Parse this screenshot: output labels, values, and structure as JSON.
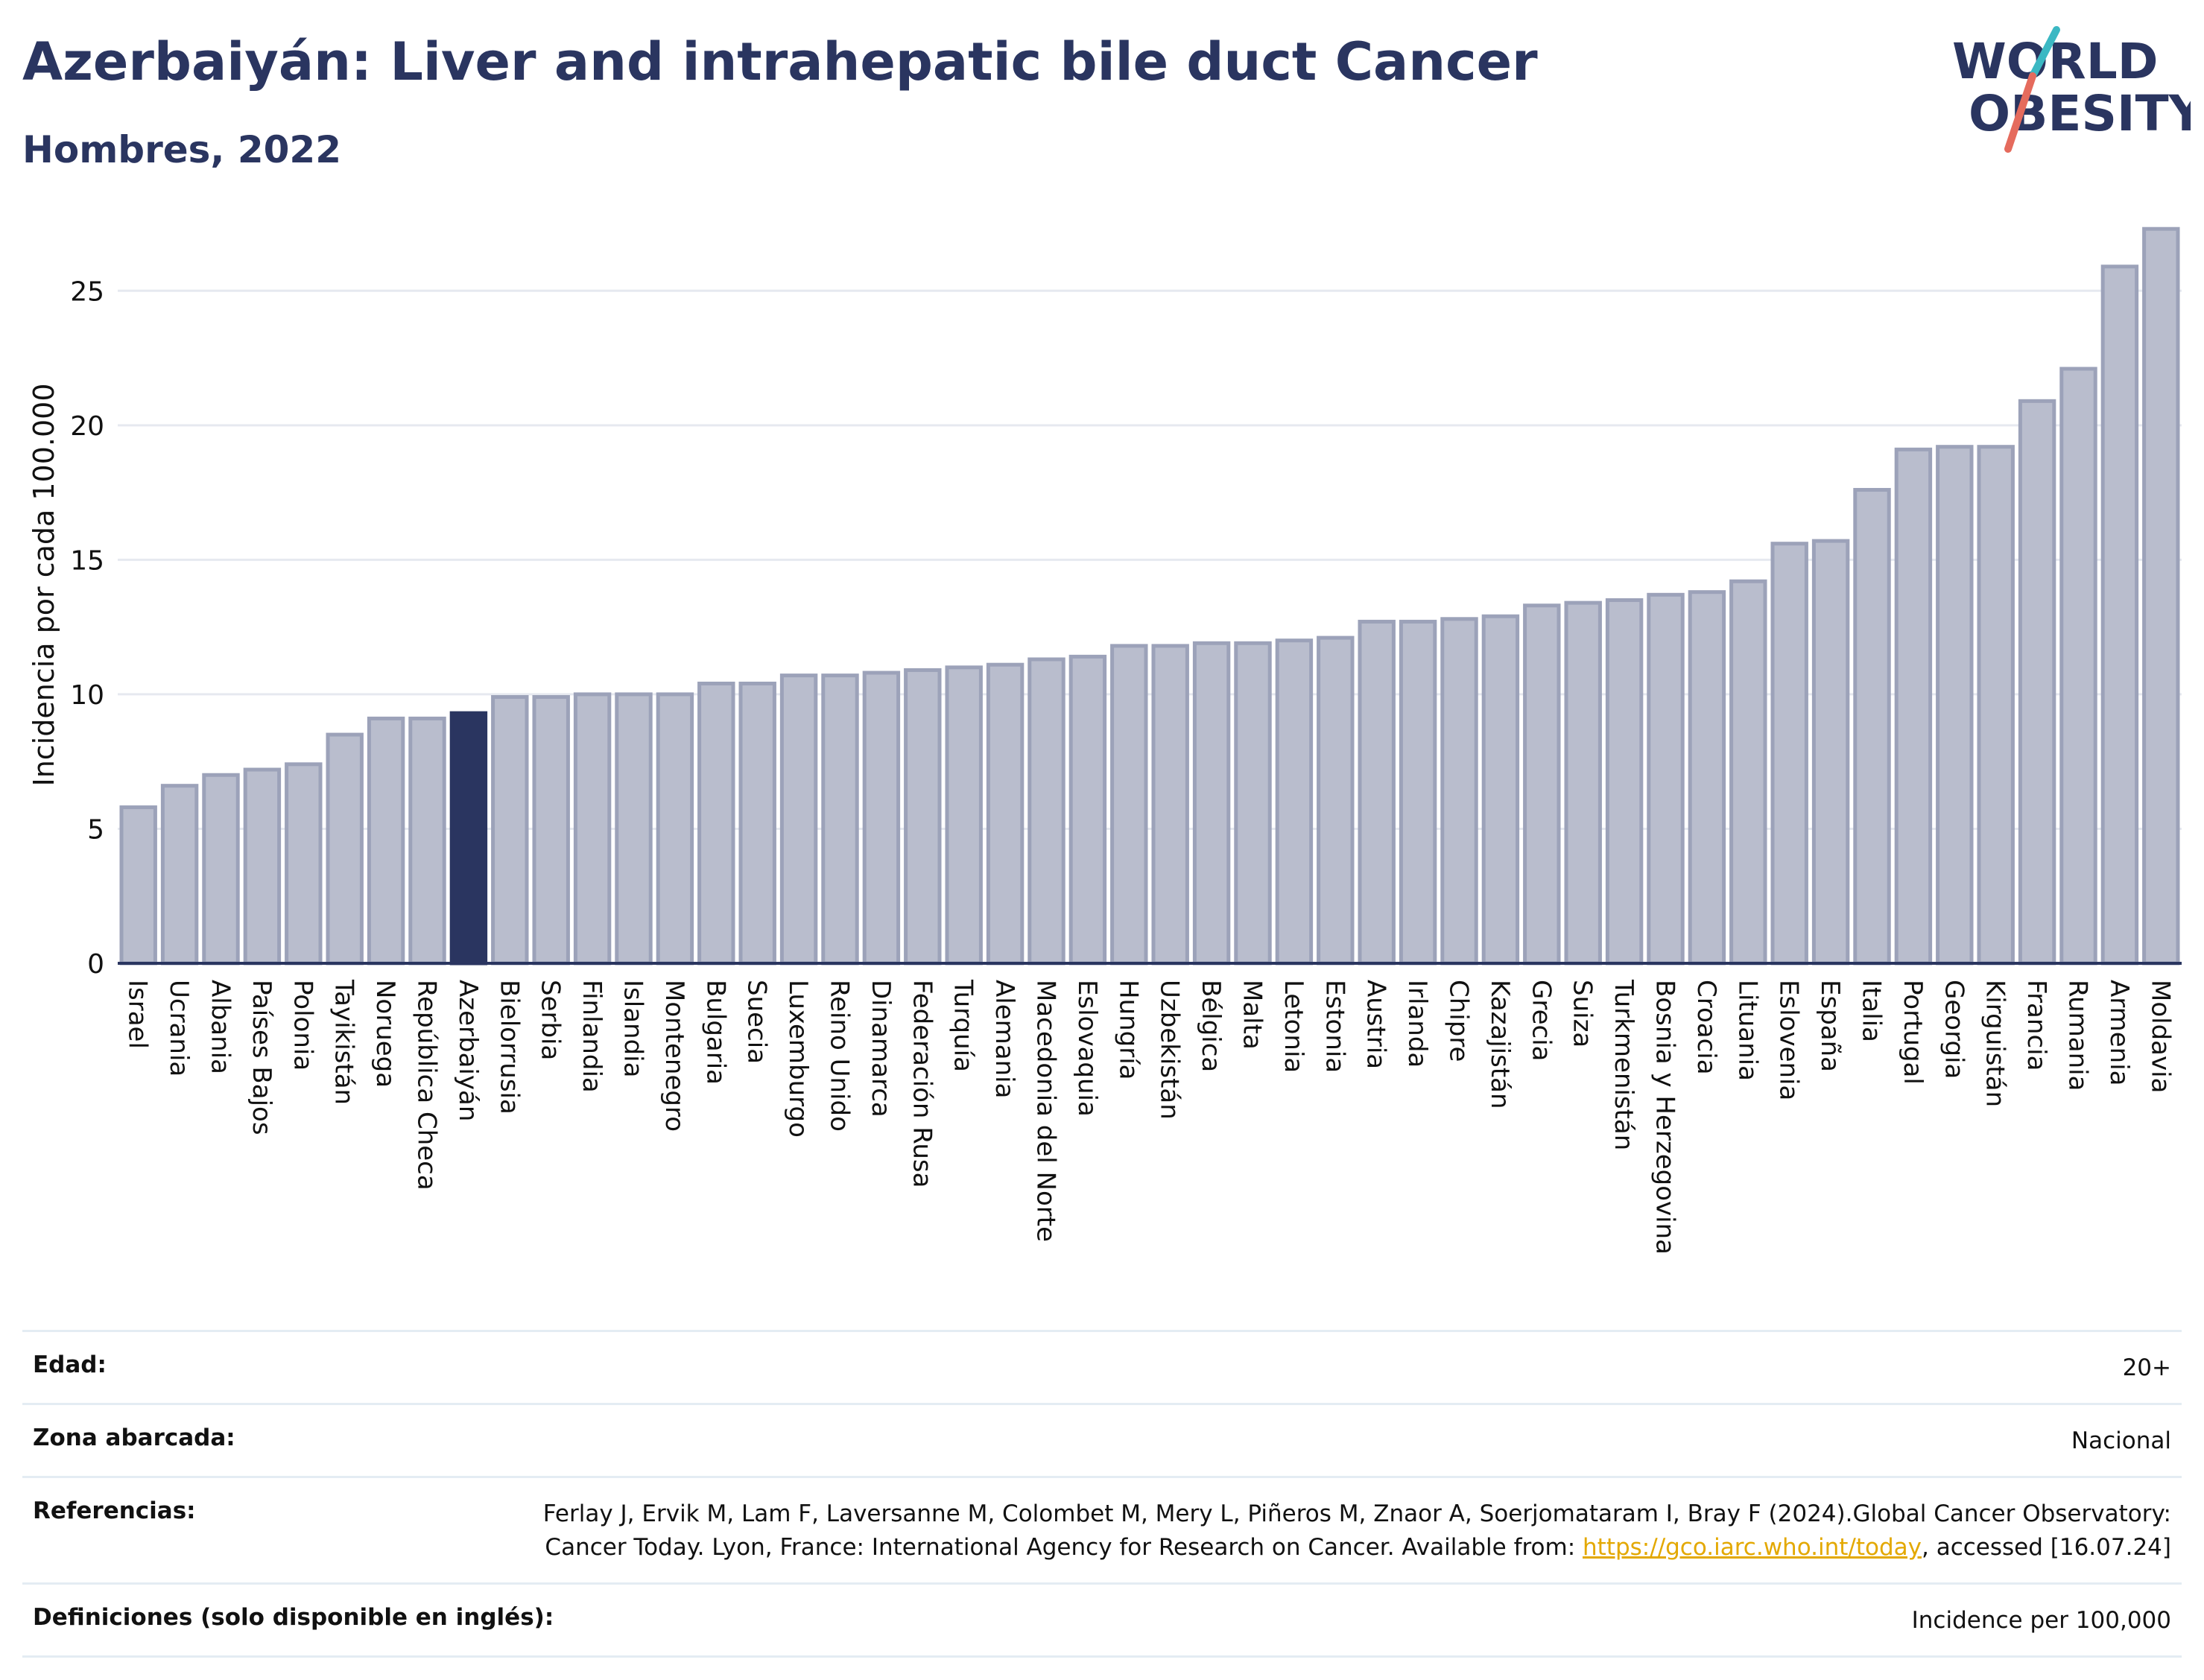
{
  "header": {
    "title": "Azerbaiyán: Liver and intrahepatic bile duct Cancer",
    "subtitle": "Hombres, 2022",
    "logo_line1": "WORLD",
    "logo_line2": "OBESITY"
  },
  "colors": {
    "bar": "#b9bdcd",
    "bar_border": "#9ca2b9",
    "highlight": "#2a3560",
    "text": "#2a3560",
    "grid": "#e6e9f0",
    "logo_teal": "#3bb8c3",
    "logo_coral": "#e56b5d"
  },
  "chart_data": {
    "type": "bar",
    "ylabel": "Incidencia por cada 100.000",
    "ylim": [
      0,
      27.5
    ],
    "yticks": [
      0,
      5,
      10,
      15,
      20,
      25
    ],
    "highlight": "Azerbaiyán",
    "grid": true,
    "categories": [
      "Israel",
      "Ucrania",
      "Albania",
      "Países Bajos",
      "Polonia",
      "Tayikistán",
      "Noruega",
      "República Checa",
      "Azerbaiyán",
      "Bielorrusia",
      "Serbia",
      "Finlandia",
      "Islandia",
      "Montenegro",
      "Bulgaria",
      "Suecia",
      "Luxemburgo",
      "Reino Unido",
      "Dinamarca",
      "Federación Rusa",
      "Turquía",
      "Alemania",
      "Macedonia del Norte",
      "Eslovaquia",
      "Hungría",
      "Uzbekistán",
      "Bélgica",
      "Malta",
      "Letonia",
      "Estonia",
      "Austria",
      "Irlanda",
      "Chipre",
      "Kazajistán",
      "Grecia",
      "Suiza",
      "Turkmenistán",
      "Bosnia y Herzegovina",
      "Croacia",
      "Lituania",
      "Eslovenia",
      "España",
      "Italia",
      "Portugal",
      "Georgia",
      "Kirguistán",
      "Francia",
      "Rumania",
      "Armenia",
      "Moldavia"
    ],
    "values": [
      5.8,
      6.6,
      7.0,
      7.2,
      7.4,
      8.5,
      9.1,
      9.1,
      9.3,
      9.9,
      9.9,
      10.0,
      10.0,
      10.0,
      10.4,
      10.4,
      10.7,
      10.7,
      10.8,
      10.9,
      11.0,
      11.1,
      11.3,
      11.4,
      11.8,
      11.8,
      11.9,
      11.9,
      12.0,
      12.1,
      12.7,
      12.7,
      12.8,
      12.9,
      13.3,
      13.4,
      13.5,
      13.7,
      13.8,
      14.2,
      15.6,
      15.7,
      17.6,
      19.1,
      19.2,
      19.2,
      20.9,
      22.1,
      25.9,
      27.3
    ]
  },
  "meta": {
    "age_label": "Edad:",
    "age_value": "20+",
    "zone_label": "Zona abarcada:",
    "zone_value": "Nacional",
    "refs_label": "Referencias:",
    "refs_text_1": "Ferlay J, Ervik M, Lam F, Laversanne M, Colombet M, Mery L, Piñeros M, Znaor A, Soerjomataram I, Bray F (2024).Global Cancer Observatory: Cancer Today. Lyon, France: International Agency for Research on Cancer. Available from: ",
    "refs_link": "https://gco.iarc.who.int/today",
    "refs_text_2": ", accessed [16.07.24]",
    "defs_label": "Definiciones (solo disponible en inglés):",
    "defs_value": "Incidence per 100,000"
  }
}
